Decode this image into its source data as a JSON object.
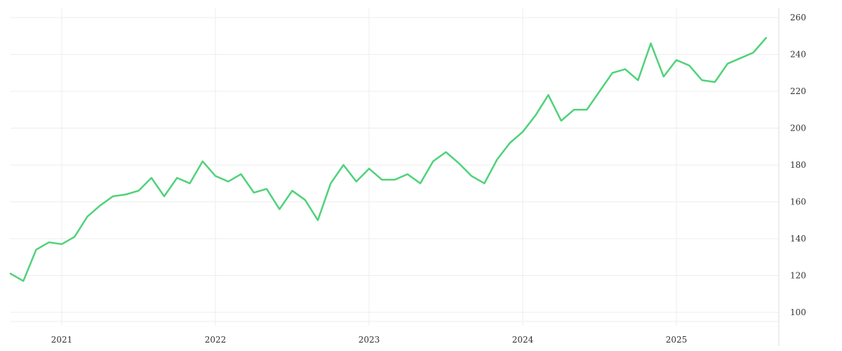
{
  "chart_data": {
    "type": "line",
    "title": "",
    "xlabel": "",
    "ylabel": "",
    "y_axis_side": "right",
    "grid": true,
    "legend": "none",
    "xlim": [
      "2020-09",
      "2025-09"
    ],
    "ylim": [
      95,
      265
    ],
    "x_ticks": [
      {
        "date": "2021-01",
        "label": "2021"
      },
      {
        "date": "2022-01",
        "label": "2022"
      },
      {
        "date": "2023-01",
        "label": "2023"
      },
      {
        "date": "2024-01",
        "label": "2024"
      },
      {
        "date": "2025-01",
        "label": "2025"
      }
    ],
    "y_ticks": [
      100,
      120,
      140,
      160,
      180,
      200,
      220,
      240,
      260
    ],
    "series": [
      {
        "color": "#4fd27a",
        "x": [
          "2020-09",
          "2020-10",
          "2020-11",
          "2020-12",
          "2021-01",
          "2021-02",
          "2021-03",
          "2021-04",
          "2021-05",
          "2021-06",
          "2021-07",
          "2021-08",
          "2021-09",
          "2021-10",
          "2021-11",
          "2021-12",
          "2022-01",
          "2022-02",
          "2022-03",
          "2022-04",
          "2022-05",
          "2022-06",
          "2022-07",
          "2022-08",
          "2022-09",
          "2022-10",
          "2022-11",
          "2022-12",
          "2023-01",
          "2023-02",
          "2023-03",
          "2023-04",
          "2023-05",
          "2023-06",
          "2023-07",
          "2023-08",
          "2023-09",
          "2023-10",
          "2023-11",
          "2023-12",
          "2024-01",
          "2024-02",
          "2024-03",
          "2024-04",
          "2024-05",
          "2024-06",
          "2024-07",
          "2024-08",
          "2024-09",
          "2024-10",
          "2024-11",
          "2024-12",
          "2025-01",
          "2025-02",
          "2025-03",
          "2025-04",
          "2025-05",
          "2025-06",
          "2025-07",
          "2025-08"
        ],
        "values": [
          121,
          117,
          134,
          138,
          137,
          141,
          152,
          158,
          163,
          164,
          166,
          173,
          163,
          173,
          170,
          182,
          174,
          171,
          175,
          165,
          167,
          156,
          166,
          161,
          150,
          170,
          180,
          171,
          178,
          172,
          172,
          175,
          170,
          182,
          187,
          181,
          174,
          170,
          183,
          192,
          198,
          207,
          218,
          204,
          210,
          210,
          220,
          230,
          232,
          226,
          246,
          228,
          237,
          234,
          226,
          225,
          235,
          238,
          241,
          249
        ]
      }
    ]
  }
}
